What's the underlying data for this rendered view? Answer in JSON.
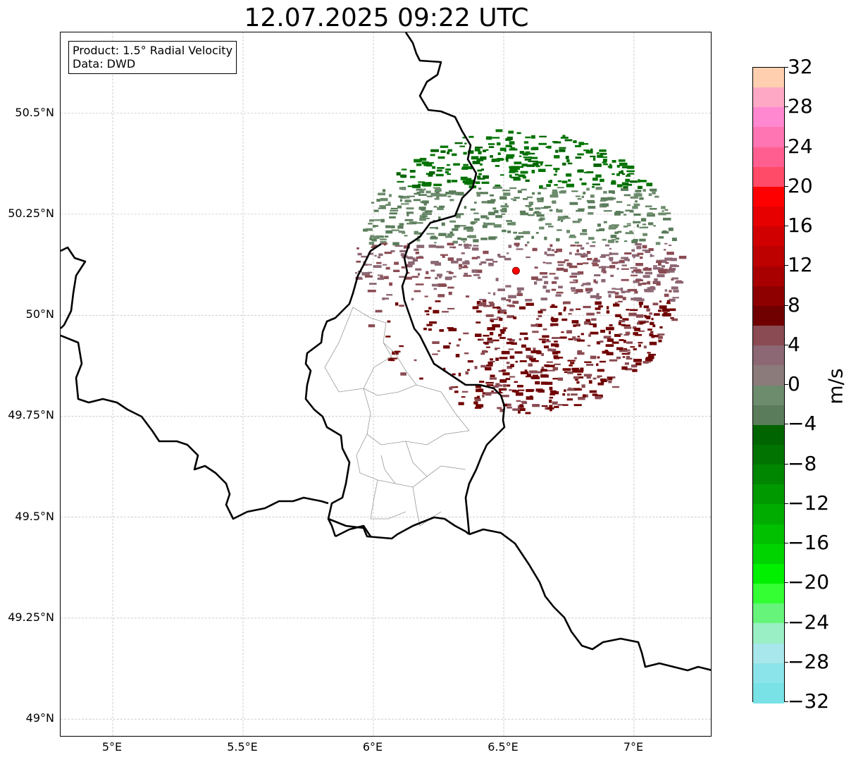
{
  "title": "12.07.2025 09:22 UTC",
  "info_box": {
    "line1": "Product: 1.5° Radial Velocity",
    "line2": "Data: DWD"
  },
  "map": {
    "lon_range": [
      4.8,
      7.3
    ],
    "lat_range": [
      48.955,
      50.7
    ],
    "lat_ticks": [
      {
        "value": 50.5,
        "label": "50.5°N"
      },
      {
        "value": 50.25,
        "label": "50.25°N"
      },
      {
        "value": 50.0,
        "label": "50°N"
      },
      {
        "value": 49.75,
        "label": "49.75°N"
      },
      {
        "value": 49.5,
        "label": "49.5°N"
      },
      {
        "value": 49.25,
        "label": "49.25°N"
      },
      {
        "value": 49.0,
        "label": "49°N"
      }
    ],
    "lon_ticks": [
      {
        "value": 5.0,
        "label": "5°E"
      },
      {
        "value": 5.5,
        "label": "5.5°E"
      },
      {
        "value": 6.0,
        "label": "6°E"
      },
      {
        "value": 6.5,
        "label": "6.5°E"
      },
      {
        "value": 7.0,
        "label": "7°E"
      }
    ],
    "gridlines": true,
    "radar_site": {
      "lon": 6.547,
      "lat": 50.11,
      "color": "#ff0000"
    },
    "radar_range_deg_lat": 0.45
  },
  "colorbar": {
    "label": "m/s",
    "min": -32,
    "max": 32,
    "ticks": [
      "32",
      "28",
      "24",
      "20",
      "16",
      "12",
      "8",
      "4",
      "0",
      "−4",
      "−8",
      "−12",
      "−16",
      "−20",
      "−24",
      "−28",
      "−32"
    ],
    "colors_top_to_bottom": [
      "#ffcfb0",
      "#ffa8c6",
      "#ff88d0",
      "#ff74b2",
      "#ff5f90",
      "#ff4a68",
      "#ff0000",
      "#e60000",
      "#d10000",
      "#bd0000",
      "#a80000",
      "#8e0000",
      "#700000",
      "#8a4b52",
      "#8c6774",
      "#8c7b7b",
      "#6d8b6d",
      "#5a7c5a",
      "#006400",
      "#007300",
      "#008600",
      "#009a00",
      "#00ac00",
      "#00c000",
      "#00d400",
      "#00f000",
      "#33ff33",
      "#66f57a",
      "#9af0c4",
      "#a8e7eb",
      "#8ae4ea",
      "#78e2e6"
    ]
  }
}
